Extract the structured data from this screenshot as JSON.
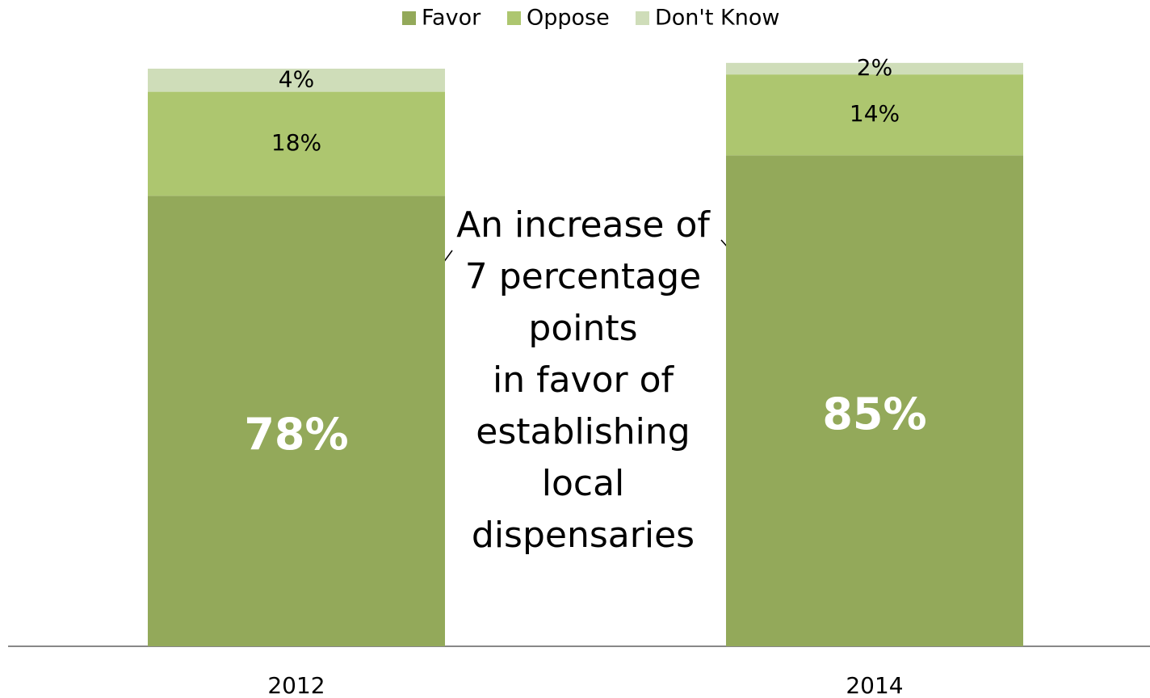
{
  "chart_data": {
    "type": "stacked_bar",
    "categories": [
      "2012",
      "2014"
    ],
    "series": [
      {
        "name": "Favor",
        "color": "#93a95a",
        "values": [
          78,
          85
        ],
        "value_labels": [
          "78%",
          "85%"
        ]
      },
      {
        "name": "Oppose",
        "color": "#adc66f",
        "values": [
          18,
          14
        ],
        "value_labels": [
          "18%",
          "14%"
        ]
      },
      {
        "name": "Don't Know",
        "color": "#cfddb9",
        "values": [
          4,
          2
        ],
        "value_labels": [
          "4%",
          "2%"
        ]
      }
    ],
    "ylim": [
      0,
      100
    ],
    "annotation": [
      "An increase of",
      "7 percentage",
      "points",
      "in favor of",
      "establishing",
      "local",
      "dispensaries"
    ]
  }
}
